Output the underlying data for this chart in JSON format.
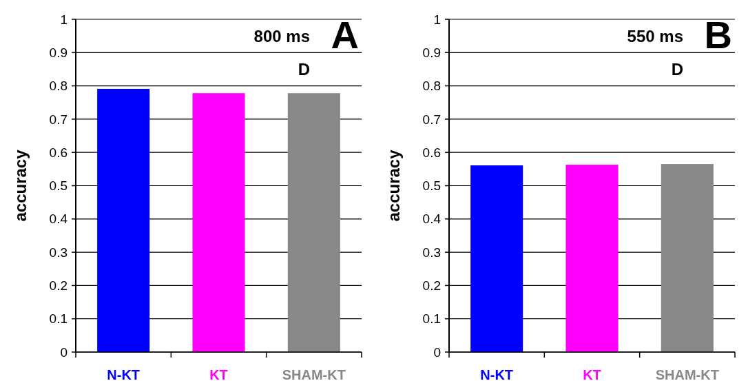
{
  "chart_data": [
    {
      "type": "bar",
      "title": "A",
      "annotations": [
        "800 ms",
        "D"
      ],
      "ylabel": "accuracy",
      "categories": [
        "N-KT",
        "KT",
        "SHAM-KT"
      ],
      "values": [
        0.791,
        0.778,
        0.778
      ],
      "colors": [
        "#0000ff",
        "#ff00ff",
        "#888888"
      ],
      "ylim": [
        0,
        1
      ],
      "yticks": [
        0,
        0.1,
        0.2,
        0.3,
        0.4,
        0.5,
        0.6,
        0.7,
        0.8,
        0.9,
        1
      ],
      "grid": "y"
    },
    {
      "type": "bar",
      "title": "B",
      "annotations": [
        "550 ms",
        "D"
      ],
      "ylabel": "accuracy",
      "categories": [
        "N-KT",
        "KT",
        "SHAM-KT"
      ],
      "values": [
        0.561,
        0.563,
        0.565
      ],
      "colors": [
        "#0000ff",
        "#ff00ff",
        "#888888"
      ],
      "ylim": [
        0,
        1
      ],
      "yticks": [
        0,
        0.1,
        0.2,
        0.3,
        0.4,
        0.5,
        0.6,
        0.7,
        0.8,
        0.9,
        1
      ],
      "grid": "y"
    }
  ]
}
